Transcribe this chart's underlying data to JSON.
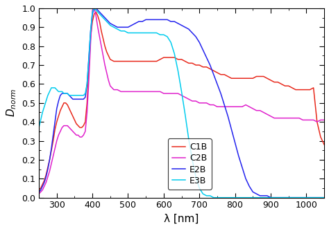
{
  "xlabel": "λ [nm]",
  "xlim": [
    250,
    1050
  ],
  "ylim": [
    0.0,
    1.0
  ],
  "xticks": [
    300,
    400,
    500,
    600,
    700,
    800,
    900,
    1000
  ],
  "yticks": [
    0.0,
    0.1,
    0.2,
    0.3,
    0.4,
    0.5,
    0.6,
    0.7,
    0.8,
    0.9,
    1.0
  ],
  "colors": {
    "C1B": "#e8291c",
    "C2B": "#e020cc",
    "E2B": "#2222ee",
    "E3B": "#00ccee"
  },
  "C1B": {
    "x": [
      250,
      255,
      260,
      265,
      270,
      275,
      280,
      285,
      290,
      295,
      300,
      305,
      310,
      315,
      320,
      325,
      330,
      335,
      340,
      345,
      350,
      355,
      360,
      365,
      370,
      375,
      380,
      385,
      390,
      395,
      400,
      405,
      410,
      415,
      420,
      425,
      430,
      435,
      440,
      445,
      450,
      460,
      470,
      480,
      490,
      500,
      510,
      520,
      530,
      540,
      550,
      560,
      570,
      580,
      590,
      600,
      610,
      620,
      630,
      640,
      650,
      660,
      670,
      680,
      690,
      700,
      710,
      720,
      730,
      740,
      750,
      760,
      770,
      780,
      790,
      800,
      810,
      820,
      830,
      840,
      850,
      860,
      870,
      880,
      890,
      900,
      910,
      920,
      930,
      940,
      950,
      960,
      970,
      980,
      990,
      1000,
      1010,
      1020,
      1030,
      1040,
      1050
    ],
    "y": [
      0.04,
      0.05,
      0.07,
      0.09,
      0.12,
      0.16,
      0.2,
      0.25,
      0.3,
      0.36,
      0.4,
      0.43,
      0.46,
      0.48,
      0.5,
      0.5,
      0.49,
      0.47,
      0.45,
      0.43,
      0.41,
      0.39,
      0.38,
      0.37,
      0.37,
      0.38,
      0.4,
      0.5,
      0.68,
      0.85,
      0.93,
      0.97,
      0.98,
      0.96,
      0.93,
      0.88,
      0.84,
      0.8,
      0.77,
      0.75,
      0.73,
      0.72,
      0.72,
      0.72,
      0.72,
      0.72,
      0.72,
      0.72,
      0.72,
      0.72,
      0.72,
      0.72,
      0.72,
      0.72,
      0.73,
      0.74,
      0.74,
      0.74,
      0.74,
      0.73,
      0.73,
      0.72,
      0.71,
      0.71,
      0.7,
      0.7,
      0.69,
      0.69,
      0.68,
      0.67,
      0.66,
      0.65,
      0.65,
      0.64,
      0.63,
      0.63,
      0.63,
      0.63,
      0.63,
      0.63,
      0.63,
      0.64,
      0.64,
      0.64,
      0.63,
      0.62,
      0.61,
      0.61,
      0.6,
      0.59,
      0.59,
      0.58,
      0.57,
      0.57,
      0.57,
      0.57,
      0.57,
      0.58,
      0.4,
      0.32,
      0.28
    ]
  },
  "C2B": {
    "x": [
      250,
      255,
      260,
      265,
      270,
      275,
      280,
      285,
      290,
      295,
      300,
      305,
      310,
      315,
      320,
      325,
      330,
      335,
      340,
      345,
      350,
      355,
      360,
      365,
      370,
      375,
      380,
      385,
      390,
      395,
      400,
      405,
      410,
      415,
      420,
      425,
      430,
      435,
      440,
      445,
      450,
      460,
      470,
      480,
      490,
      500,
      510,
      520,
      530,
      540,
      550,
      560,
      570,
      580,
      590,
      600,
      610,
      620,
      630,
      640,
      650,
      660,
      670,
      680,
      690,
      700,
      710,
      720,
      730,
      740,
      750,
      760,
      770,
      780,
      790,
      800,
      810,
      820,
      830,
      840,
      850,
      860,
      870,
      880,
      890,
      900,
      910,
      920,
      930,
      940,
      950,
      960,
      970,
      980,
      990,
      1000,
      1010,
      1020,
      1030,
      1040,
      1050
    ],
    "y": [
      0.02,
      0.03,
      0.04,
      0.06,
      0.08,
      0.11,
      0.14,
      0.18,
      0.22,
      0.26,
      0.3,
      0.33,
      0.35,
      0.37,
      0.38,
      0.38,
      0.38,
      0.37,
      0.36,
      0.35,
      0.34,
      0.33,
      0.33,
      0.32,
      0.32,
      0.33,
      0.35,
      0.45,
      0.62,
      0.82,
      0.99,
      1.0,
      0.96,
      0.9,
      0.85,
      0.8,
      0.75,
      0.7,
      0.66,
      0.62,
      0.59,
      0.57,
      0.57,
      0.56,
      0.56,
      0.56,
      0.56,
      0.56,
      0.56,
      0.56,
      0.56,
      0.56,
      0.56,
      0.56,
      0.56,
      0.55,
      0.55,
      0.55,
      0.55,
      0.55,
      0.54,
      0.53,
      0.52,
      0.51,
      0.51,
      0.5,
      0.5,
      0.5,
      0.49,
      0.49,
      0.48,
      0.48,
      0.48,
      0.48,
      0.48,
      0.48,
      0.48,
      0.48,
      0.49,
      0.48,
      0.47,
      0.46,
      0.46,
      0.45,
      0.44,
      0.43,
      0.42,
      0.42,
      0.42,
      0.42,
      0.42,
      0.42,
      0.42,
      0.42,
      0.41,
      0.41,
      0.41,
      0.41,
      0.4,
      0.41,
      0.41
    ]
  },
  "E2B": {
    "x": [
      250,
      255,
      260,
      265,
      270,
      275,
      280,
      285,
      290,
      295,
      300,
      305,
      310,
      315,
      320,
      325,
      330,
      335,
      340,
      345,
      350,
      355,
      360,
      365,
      370,
      375,
      380,
      385,
      390,
      395,
      400,
      405,
      410,
      415,
      420,
      425,
      430,
      435,
      440,
      445,
      450,
      460,
      470,
      480,
      490,
      500,
      510,
      520,
      530,
      540,
      550,
      560,
      570,
      580,
      590,
      600,
      610,
      620,
      630,
      640,
      650,
      660,
      670,
      680,
      690,
      700,
      710,
      720,
      730,
      740,
      750,
      760,
      770,
      780,
      790,
      800,
      810,
      820,
      830,
      840,
      850,
      860,
      870,
      880,
      890,
      900,
      910,
      920,
      930,
      940,
      950,
      960,
      970,
      980,
      990,
      1000,
      1010,
      1020,
      1030,
      1040,
      1050
    ],
    "y": [
      0.03,
      0.04,
      0.06,
      0.08,
      0.11,
      0.15,
      0.2,
      0.26,
      0.33,
      0.4,
      0.47,
      0.51,
      0.54,
      0.55,
      0.55,
      0.55,
      0.55,
      0.54,
      0.53,
      0.52,
      0.52,
      0.52,
      0.52,
      0.52,
      0.52,
      0.52,
      0.53,
      0.6,
      0.74,
      0.88,
      0.97,
      1.0,
      1.0,
      0.99,
      0.98,
      0.97,
      0.96,
      0.95,
      0.94,
      0.93,
      0.92,
      0.91,
      0.9,
      0.9,
      0.9,
      0.9,
      0.91,
      0.92,
      0.93,
      0.93,
      0.94,
      0.94,
      0.94,
      0.94,
      0.94,
      0.94,
      0.94,
      0.93,
      0.93,
      0.92,
      0.91,
      0.9,
      0.89,
      0.87,
      0.85,
      0.82,
      0.78,
      0.74,
      0.7,
      0.65,
      0.6,
      0.55,
      0.49,
      0.43,
      0.36,
      0.29,
      0.22,
      0.16,
      0.1,
      0.06,
      0.03,
      0.02,
      0.01,
      0.01,
      0.01,
      0.0,
      0.0,
      0.0,
      0.0,
      0.0,
      0.0,
      0.0,
      0.0,
      0.0,
      0.0,
      0.0,
      0.0,
      0.0,
      0.0,
      0.0,
      0.0
    ]
  },
  "E3B": {
    "x": [
      250,
      255,
      260,
      265,
      270,
      275,
      280,
      285,
      290,
      295,
      300,
      305,
      310,
      315,
      320,
      325,
      330,
      335,
      340,
      345,
      350,
      355,
      360,
      365,
      370,
      375,
      380,
      385,
      390,
      395,
      400,
      405,
      410,
      415,
      420,
      425,
      430,
      435,
      440,
      445,
      450,
      460,
      470,
      480,
      490,
      500,
      510,
      520,
      530,
      540,
      550,
      560,
      570,
      580,
      590,
      600,
      610,
      620,
      630,
      640,
      650,
      660,
      670,
      680,
      690,
      700,
      710,
      720,
      730,
      740,
      750,
      760,
      770,
      780,
      790,
      800,
      810,
      820,
      830,
      840,
      850,
      860,
      870,
      880,
      890,
      900,
      910,
      920,
      930,
      940,
      950,
      960,
      970,
      980,
      990,
      1000,
      1010,
      1020,
      1030,
      1040,
      1050
    ],
    "y": [
      0.37,
      0.41,
      0.45,
      0.48,
      0.51,
      0.54,
      0.56,
      0.58,
      0.58,
      0.58,
      0.57,
      0.56,
      0.56,
      0.56,
      0.55,
      0.55,
      0.55,
      0.54,
      0.54,
      0.54,
      0.54,
      0.54,
      0.54,
      0.54,
      0.54,
      0.54,
      0.55,
      0.6,
      0.73,
      0.88,
      0.98,
      1.0,
      0.99,
      0.98,
      0.97,
      0.96,
      0.95,
      0.94,
      0.93,
      0.92,
      0.91,
      0.9,
      0.89,
      0.88,
      0.88,
      0.87,
      0.87,
      0.87,
      0.87,
      0.87,
      0.87,
      0.87,
      0.87,
      0.87,
      0.86,
      0.86,
      0.85,
      0.82,
      0.76,
      0.67,
      0.56,
      0.44,
      0.31,
      0.2,
      0.11,
      0.05,
      0.02,
      0.01,
      0.01,
      0.0,
      0.0,
      0.0,
      0.0,
      0.0,
      0.0,
      0.0,
      0.0,
      0.0,
      0.0,
      0.0,
      0.0,
      0.0,
      0.0,
      0.0,
      0.0,
      0.0,
      0.0,
      0.0,
      0.0,
      0.0,
      0.0,
      0.0,
      0.0,
      0.0,
      0.0,
      0.0,
      0.0,
      0.0,
      0.0,
      0.0,
      0.0
    ]
  },
  "linewidth": 1.1,
  "figsize": [
    4.74,
    3.31
  ],
  "dpi": 100
}
